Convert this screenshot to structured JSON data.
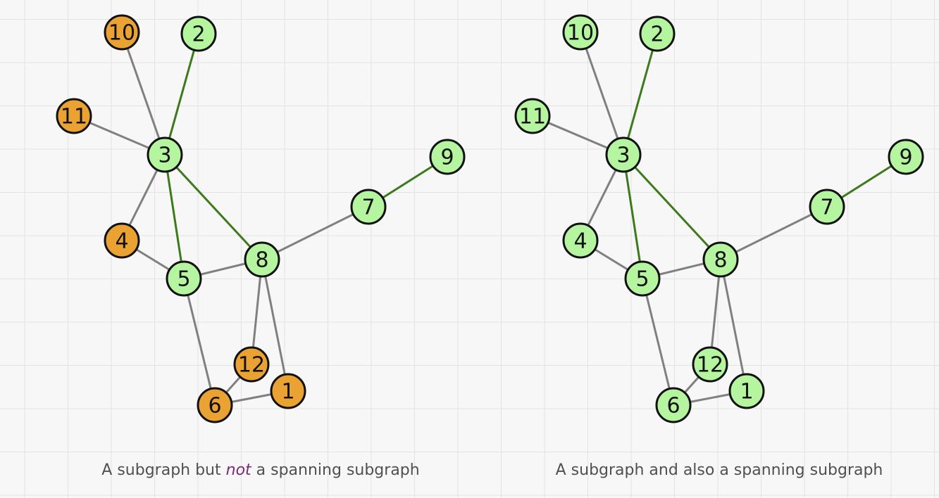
{
  "colors": {
    "node_in": "#b5f5a0",
    "node_out": "#eaa232",
    "edge_in": "#3d7a1c",
    "edge_out": "#808080",
    "outline": "#111111"
  },
  "nodes": [
    "1",
    "2",
    "3",
    "4",
    "5",
    "6",
    "7",
    "8",
    "9",
    "10",
    "11",
    "12"
  ],
  "edges": [
    [
      "10",
      "3"
    ],
    [
      "2",
      "3"
    ],
    [
      "11",
      "3"
    ],
    [
      "3",
      "4"
    ],
    [
      "3",
      "5"
    ],
    [
      "3",
      "8"
    ],
    [
      "4",
      "5"
    ],
    [
      "5",
      "8"
    ],
    [
      "8",
      "7"
    ],
    [
      "7",
      "9"
    ],
    [
      "5",
      "6"
    ],
    [
      "8",
      "12"
    ],
    [
      "8",
      "1"
    ],
    [
      "6",
      "12"
    ],
    [
      "6",
      "1"
    ]
  ],
  "graphs": [
    {
      "caption_before": "A subgraph but ",
      "caption_em": "not",
      "caption_after": " a spanning subgraph",
      "subgraph_nodes": [
        "2",
        "3",
        "5",
        "7",
        "8",
        "9"
      ],
      "subgraph_edges": [
        [
          "2",
          "3"
        ],
        [
          "3",
          "5"
        ],
        [
          "3",
          "8"
        ],
        [
          "7",
          "9"
        ]
      ]
    },
    {
      "caption_before": "A subgraph and also a spanning subgraph",
      "caption_em": "",
      "caption_after": "",
      "subgraph_nodes": [
        "1",
        "2",
        "3",
        "4",
        "5",
        "6",
        "7",
        "8",
        "9",
        "10",
        "11",
        "12"
      ],
      "subgraph_edges": [
        [
          "2",
          "3"
        ],
        [
          "3",
          "5"
        ],
        [
          "3",
          "8"
        ],
        [
          "7",
          "9"
        ]
      ]
    }
  ]
}
